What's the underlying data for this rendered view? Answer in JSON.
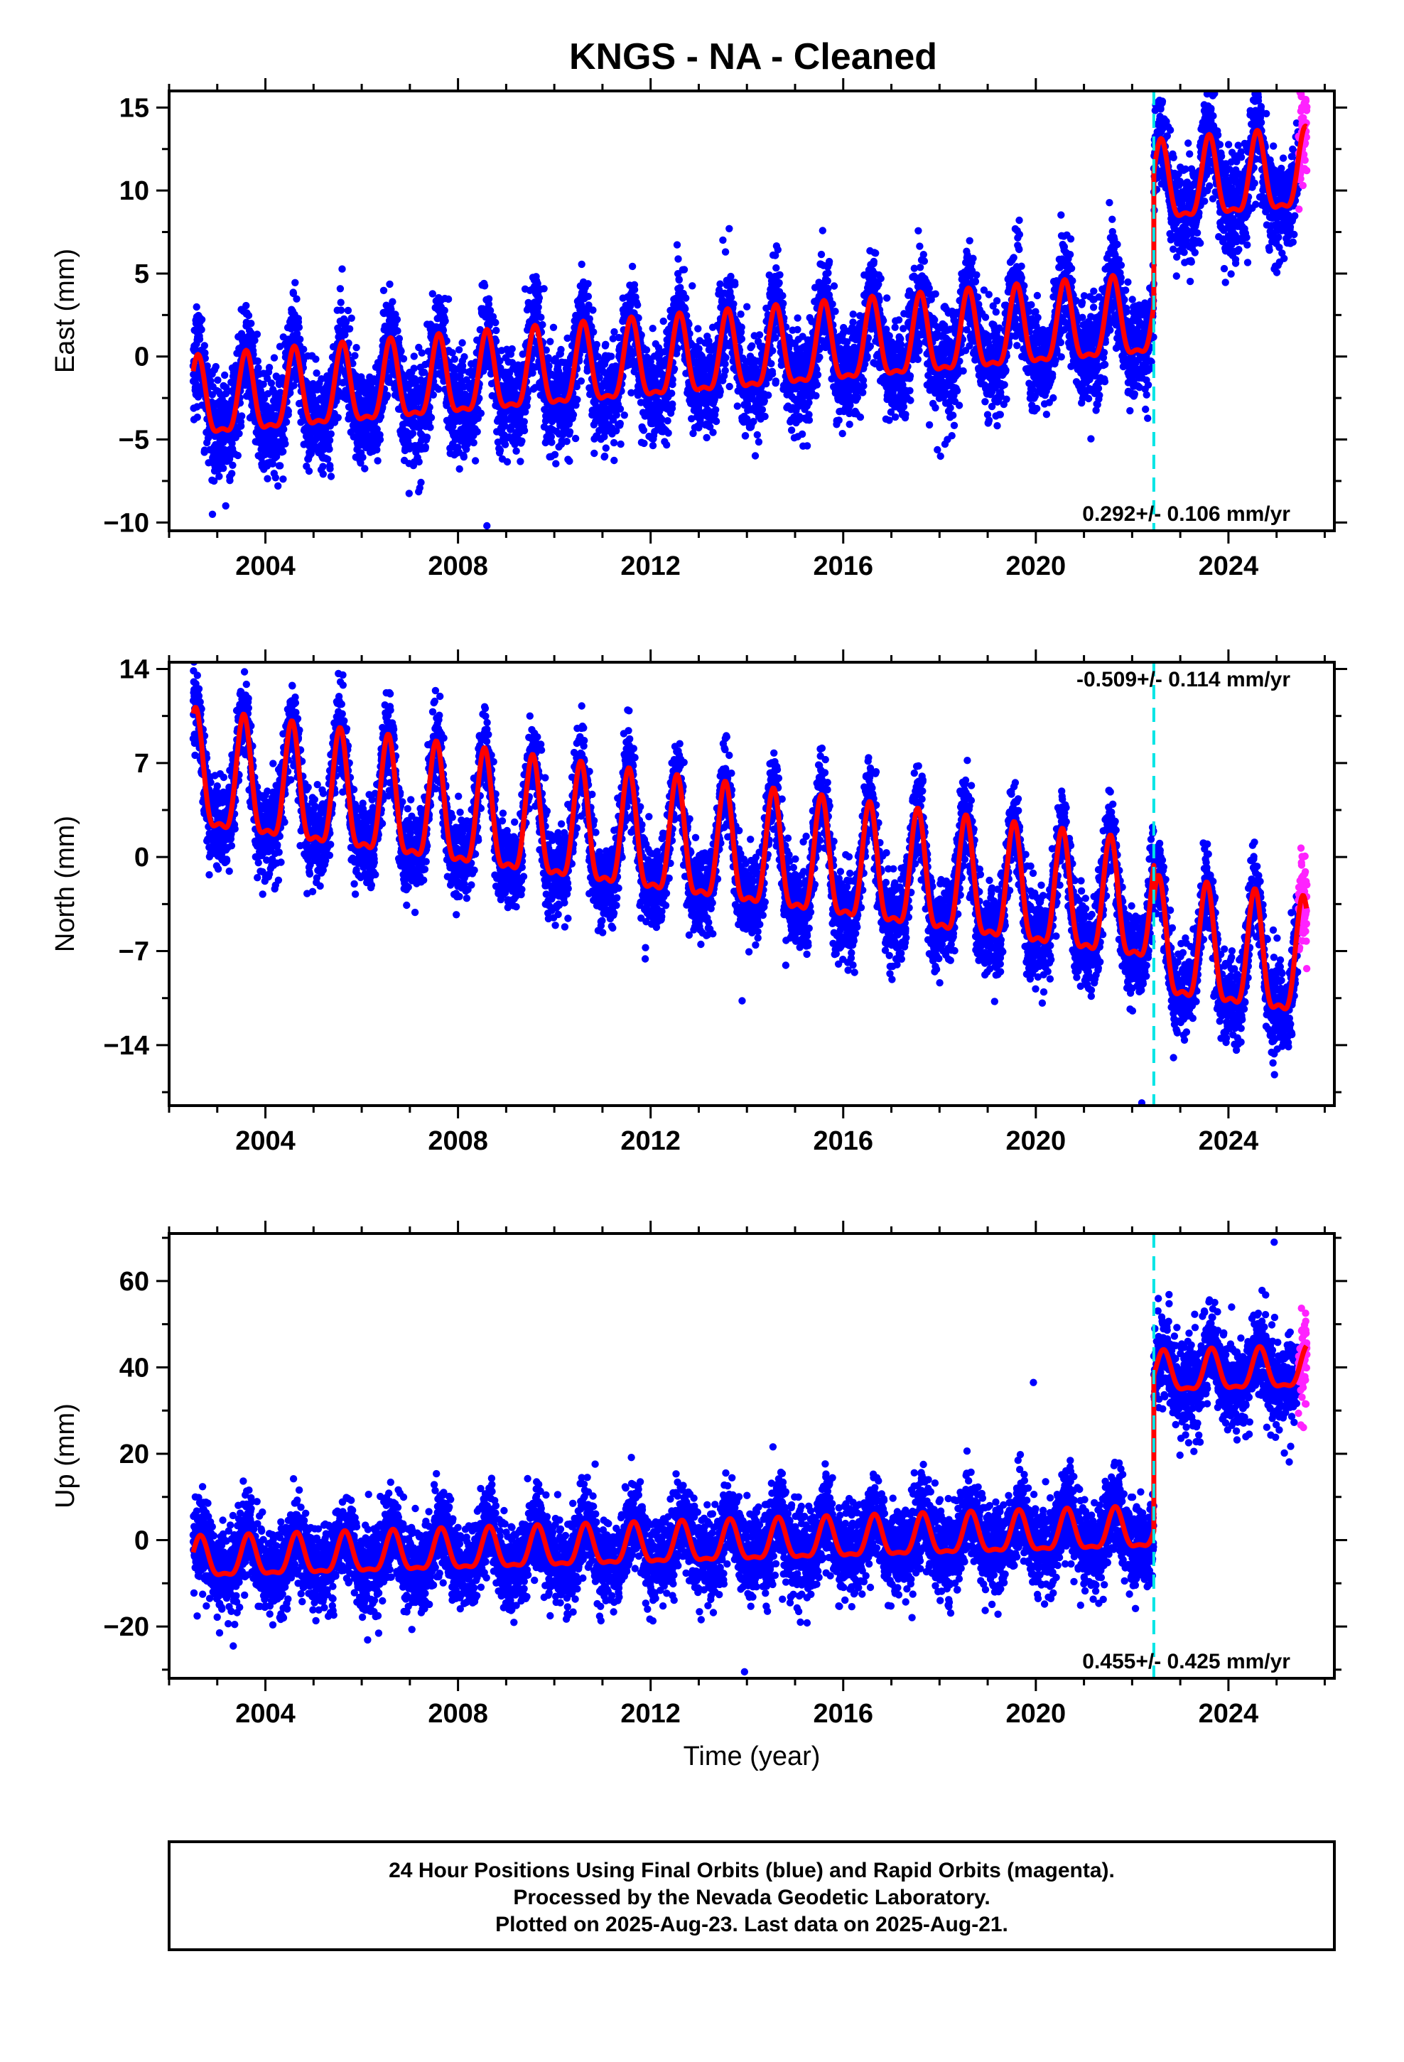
{
  "title": "KNGS  - NA - Cleaned",
  "xlabel": "Time (year)",
  "colors": {
    "final_orbits": "#0000ff",
    "rapid_orbits": "#ff22ff",
    "model": "#ff0000",
    "equipment_change": "#00e5e5",
    "frame": "#000000"
  },
  "chart_data": [
    {
      "type": "scatter",
      "panel": "east",
      "ylabel": "East (mm)",
      "xlim": [
        2002.0,
        2026.2
      ],
      "ylim": [
        -10.5,
        16
      ],
      "xticks": [
        2004,
        2008,
        2012,
        2016,
        2020,
        2024
      ],
      "yticks": [
        15,
        10,
        5,
        0,
        -5,
        -10
      ],
      "rate_label": "0.292+/- 0.106 mm/yr",
      "rate_position": "bottom-right",
      "offset_epoch": 2022.45,
      "model": {
        "trend_mm_per_yr": 0.25,
        "intercept_mm_at_2002_5": -3.0,
        "annual_amplitude_mm": 2.3,
        "peak_phase_frac": 0.6,
        "offset_mm": 8.0,
        "scatter_mm": 1.5
      },
      "data_span": [
        2002.5,
        2025.63
      ],
      "rapid_span": [
        2025.45,
        2025.63
      ],
      "outliers": [
        {
          "x": 2008.6,
          "y": -10.2
        }
      ]
    },
    {
      "type": "scatter",
      "panel": "north",
      "ylabel": "North (mm)",
      "xlim": [
        2002.0,
        2026.2
      ],
      "ylim": [
        -18.5,
        14.5
      ],
      "xticks": [
        2004,
        2008,
        2012,
        2016,
        2020,
        2024
      ],
      "yticks": [
        14,
        7,
        0,
        -7,
        -14
      ],
      "rate_label": "-0.509+/- 0.114 mm/yr",
      "rate_position": "top-right",
      "offset_epoch": 2022.45,
      "model": {
        "trend_mm_per_yr": -0.5,
        "intercept_mm_at_2002_5": 5.5,
        "annual_amplitude_mm": 4.2,
        "peak_phase_frac": 0.55,
        "offset_mm": -2.5,
        "scatter_mm": 1.6
      },
      "data_span": [
        2002.5,
        2025.63
      ],
      "rapid_span": [
        2025.45,
        2025.63
      ],
      "outliers": [
        {
          "x": 2022.2,
          "y": -18.3
        },
        {
          "x": 2013.9,
          "y": -10.7
        }
      ]
    },
    {
      "type": "scatter",
      "panel": "up",
      "ylabel": "Up (mm)",
      "xlim": [
        2002.0,
        2026.2
      ],
      "ylim": [
        -32,
        71
      ],
      "xticks": [
        2004,
        2008,
        2012,
        2016,
        2020,
        2024
      ],
      "yticks": [
        60,
        40,
        20,
        0,
        -20
      ],
      "rate_label": "0.455+/- 0.425 mm/yr",
      "rate_position": "bottom-right",
      "offset_epoch": 2022.45,
      "model": {
        "trend_mm_per_yr": 0.35,
        "intercept_mm_at_2002_5": -5.0,
        "annual_amplitude_mm": 4.5,
        "peak_phase_frac": 0.65,
        "offset_mm": 36.0,
        "scatter_mm": 5.0
      },
      "data_span": [
        2002.5,
        2025.63
      ],
      "rapid_span": [
        2025.45,
        2025.63
      ],
      "outliers": [
        {
          "x": 2024.95,
          "y": 69
        },
        {
          "x": 2013.95,
          "y": -30.5
        },
        {
          "x": 2019.95,
          "y": 36.5
        }
      ]
    }
  ],
  "footer": {
    "line1": "24 Hour Positions Using Final Orbits (blue) and Rapid Orbits (magenta).",
    "line2": "Processed by the Nevada Geodetic Laboratory.",
    "line3": "Plotted on 2025-Aug-23. Last data on 2025-Aug-21."
  }
}
